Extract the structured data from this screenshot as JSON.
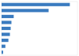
{
  "chart_data": {
    "type": "bar",
    "orientation": "horizontal",
    "categories": [
      null,
      null,
      null,
      null,
      null,
      null,
      null,
      null,
      null
    ],
    "values": [
      90,
      62,
      16,
      13,
      12,
      11,
      9,
      5,
      2
    ],
    "color": "#3a7bbf",
    "xlim": [
      0,
      100
    ],
    "tick_labels": false
  }
}
